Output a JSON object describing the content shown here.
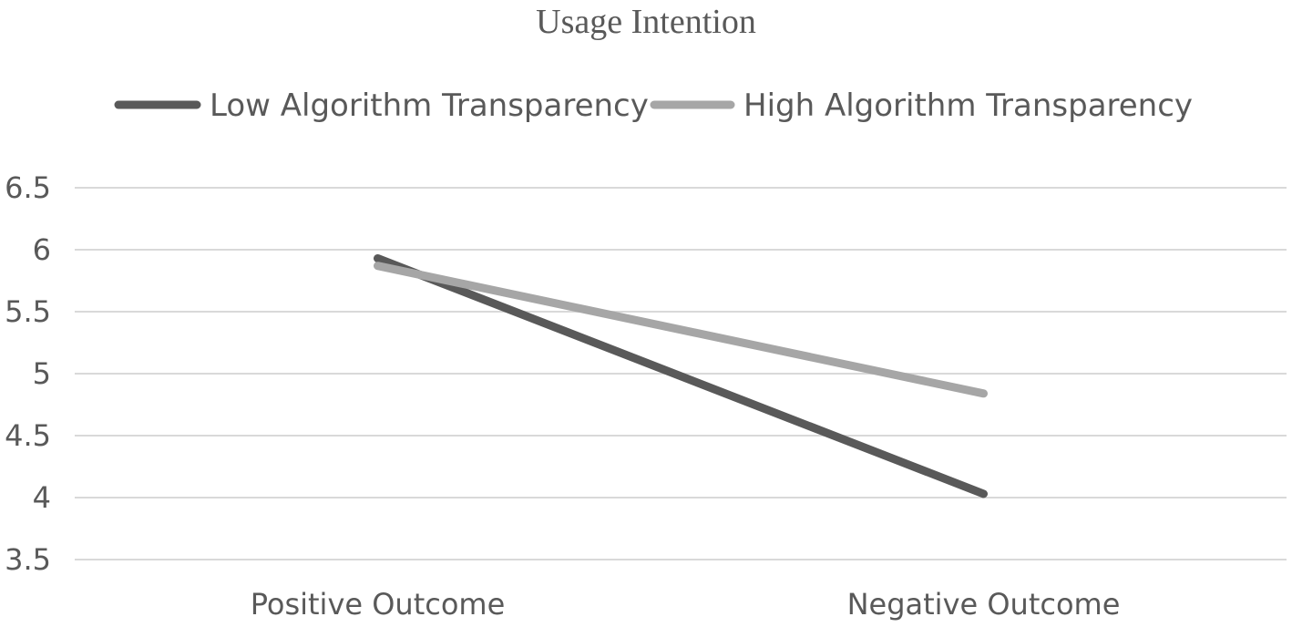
{
  "chart_data": {
    "type": "line",
    "title": "Usage Intention",
    "xlabel": "",
    "ylabel": "",
    "categories": [
      "Positive Outcome",
      "Negative Outcome"
    ],
    "series": [
      {
        "name": "Low Algorithm Transparency",
        "values": [
          5.93,
          4.03
        ],
        "color": "#595959"
      },
      {
        "name": "High Algorithm Transparency",
        "values": [
          5.87,
          4.84
        ],
        "color": "#a6a6a6"
      }
    ],
    "yticks": [
      "6.5",
      "6",
      "5.5",
      "5",
      "4.5",
      "4",
      "3.5"
    ],
    "ylim": [
      3.5,
      6.5
    ],
    "grid": true,
    "legend_position": "top"
  }
}
